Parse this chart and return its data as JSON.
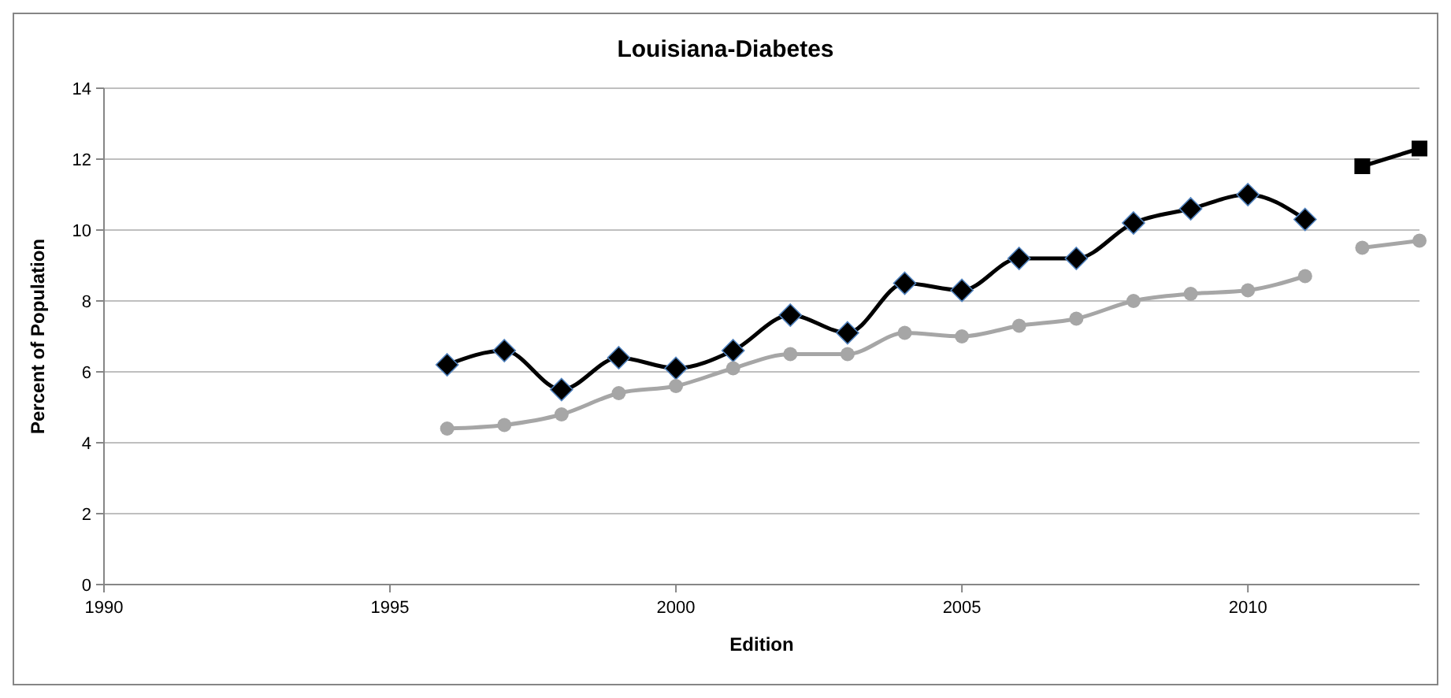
{
  "chart_data": {
    "type": "line",
    "title": "Louisiana-Diabetes",
    "xlabel": "Edition",
    "ylabel": "Percent of Population",
    "xlim": [
      1990,
      2013
    ],
    "xticks": [
      1990,
      1995,
      2000,
      2005,
      2010
    ],
    "ylim": [
      0,
      14
    ],
    "yticks": [
      0,
      2,
      4,
      6,
      8,
      10,
      12,
      14
    ],
    "grid": "y",
    "series": [
      {
        "color": "#000000",
        "marker": "diamond",
        "x": [
          1996,
          1997,
          1998,
          1999,
          2000,
          2001,
          2002,
          2003,
          2004,
          2005,
          2006,
          2007,
          2008,
          2009,
          2010,
          2011
        ],
        "values": [
          6.2,
          6.6,
          5.5,
          6.4,
          6.1,
          6.6,
          7.6,
          7.1,
          8.5,
          8.3,
          9.2,
          9.2,
          10.2,
          10.6,
          11.0,
          10.3
        ]
      },
      {
        "color": "#a6a6a6",
        "marker": "circle",
        "x": [
          1996,
          1997,
          1998,
          1999,
          2000,
          2001,
          2002,
          2003,
          2004,
          2005,
          2006,
          2007,
          2008,
          2009,
          2010,
          2011
        ],
        "values": [
          4.4,
          4.5,
          4.8,
          5.4,
          5.6,
          6.1,
          6.5,
          6.5,
          7.1,
          7.0,
          7.3,
          7.5,
          8.0,
          8.2,
          8.3,
          8.7
        ]
      },
      {
        "color": "#000000",
        "marker": "square",
        "x": [
          2012,
          2013
        ],
        "values": [
          11.8,
          12.3
        ]
      },
      {
        "color": "#a6a6a6",
        "marker": "circle",
        "x": [
          2012,
          2013
        ],
        "values": [
          9.5,
          9.7
        ]
      }
    ]
  }
}
